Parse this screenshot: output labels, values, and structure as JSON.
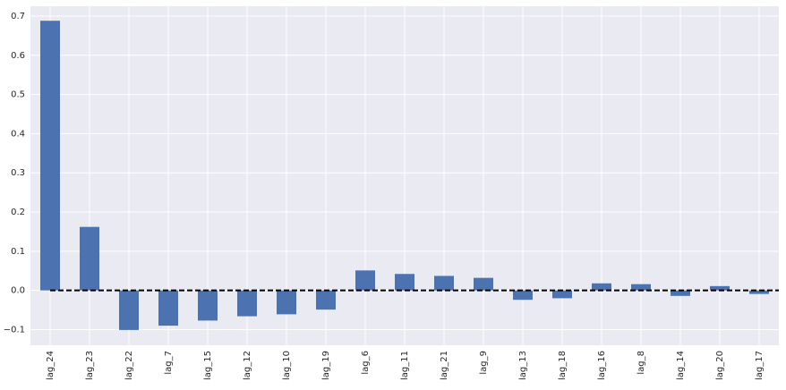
{
  "chart_data": {
    "type": "bar",
    "categories": [
      "lag_24",
      "lag_23",
      "lag_22",
      "lag_7",
      "lag_15",
      "lag_12",
      "lag_10",
      "lag_19",
      "lag_6",
      "lag_11",
      "lag_21",
      "lag_9",
      "lag_13",
      "lag_18",
      "lag_16",
      "lag_8",
      "lag_14",
      "lag_20",
      "lag_17"
    ],
    "values": [
      0.688,
      0.162,
      -0.101,
      -0.09,
      -0.077,
      -0.066,
      -0.061,
      -0.049,
      0.051,
      0.042,
      0.037,
      0.032,
      -0.024,
      -0.02,
      0.018,
      0.016,
      -0.014,
      0.011,
      -0.009
    ],
    "color": "#4c72b0",
    "ylim": [
      -0.14,
      0.725
    ],
    "yticks": [
      {
        "value": -0.1,
        "label": "−0.1"
      },
      {
        "value": 0,
        "label": "0.0"
      },
      0.1,
      0.2,
      0.3,
      0.4,
      0.5,
      0.6,
      0.7
    ],
    "grid": true,
    "hline": 0
  }
}
